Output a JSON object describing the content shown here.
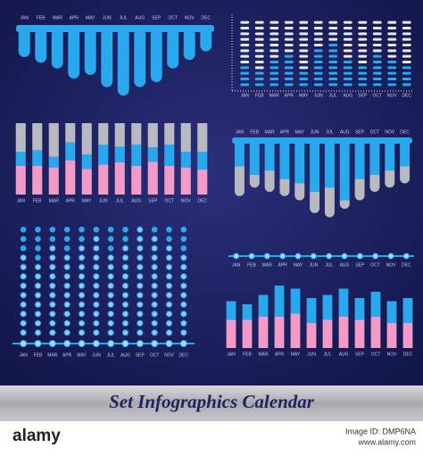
{
  "chart_data": [
    {
      "type": "hanging-bar",
      "categories": [
        "JAN",
        "FEB",
        "MAR",
        "APR",
        "MAY",
        "JUN",
        "JUL",
        "AUG",
        "SEP",
        "OCT",
        "NOV",
        "DEC"
      ],
      "values": [
        40,
        48,
        56,
        70,
        65,
        82,
        94,
        82,
        75,
        56,
        44,
        32
      ],
      "color": "#2aa8ee",
      "ylim": [
        0,
        100
      ]
    },
    {
      "type": "dot-matrix",
      "categories": [
        "JAN",
        "FEB",
        "MAR",
        "APR",
        "MAY",
        "JUN",
        "JUL",
        "AUG",
        "SEP",
        "OCT",
        "NOV",
        "DEC"
      ],
      "values": [
        4,
        3,
        5,
        6,
        3,
        7,
        8,
        5,
        4,
        6,
        5,
        4
      ],
      "color": "#2aa8ee",
      "ylim": [
        0,
        12
      ]
    },
    {
      "type": "stacked-bar",
      "categories": [
        "JAN",
        "FEB",
        "MAR",
        "APR",
        "MAY",
        "JUN",
        "JUL",
        "AUG",
        "SEP",
        "OCT",
        "NOV",
        "DEC"
      ],
      "series": [
        {
          "color": "#f29bc8",
          "values": [
            40,
            40,
            38,
            48,
            36,
            42,
            45,
            40,
            46,
            40,
            38,
            35
          ]
        },
        {
          "color": "#2aa8ee",
          "values": [
            20,
            22,
            15,
            25,
            20,
            28,
            22,
            30,
            20,
            30,
            22,
            25
          ]
        },
        {
          "color": "#b9b9c2",
          "values": [
            40,
            38,
            47,
            27,
            44,
            30,
            33,
            30,
            34,
            30,
            40,
            40
          ]
        }
      ],
      "ylim": [
        0,
        100
      ]
    },
    {
      "type": "hanging-stacked",
      "categories": [
        "JAN",
        "FEB",
        "MAR",
        "APR",
        "MAY",
        "JUN",
        "JUL",
        "AUG",
        "SEP",
        "OCT",
        "NOV",
        "DEC"
      ],
      "series": [
        {
          "color": "#2aa8ee",
          "values": [
            30,
            40,
            35,
            45,
            50,
            60,
            55,
            70,
            45,
            40,
            35,
            30
          ]
        },
        {
          "color": "#b9b9c2",
          "values": [
            35,
            15,
            25,
            20,
            20,
            25,
            35,
            10,
            25,
            20,
            20,
            20
          ]
        }
      ],
      "ylim": [
        0,
        100
      ]
    },
    {
      "type": "dot-grid",
      "categories": [
        "JAN",
        "FEB",
        "MAR",
        "APR",
        "MAY",
        "JUN",
        "JUL",
        "AUG",
        "SEP",
        "OCT",
        "NOV",
        "DEC"
      ],
      "values": [
        9,
        8,
        10,
        9,
        10,
        11,
        9,
        10,
        12,
        11,
        10,
        9
      ],
      "color": "#2aa8ee",
      "ylim": [
        0,
        12
      ]
    },
    {
      "type": "timeline",
      "categories": [
        "JAN",
        "FEB",
        "MAR",
        "APR",
        "MAY",
        "JUN",
        "JUL",
        "AUG",
        "SEP",
        "OCT",
        "NOV",
        "DEC"
      ],
      "color": "#2aa8ee"
    },
    {
      "type": "stacked-bar",
      "categories": [
        "JAN",
        "FEB",
        "MAR",
        "APR",
        "MAY",
        "JUN",
        "JUL",
        "AUG",
        "SEP",
        "OCT",
        "NOV",
        "DEC"
      ],
      "series": [
        {
          "color": "#f29bc8",
          "values": [
            45,
            45,
            50,
            50,
            55,
            40,
            45,
            50,
            45,
            50,
            40,
            40
          ]
        },
        {
          "color": "#2aa8ee",
          "values": [
            30,
            25,
            35,
            50,
            40,
            40,
            40,
            45,
            35,
            40,
            35,
            40
          ]
        }
      ],
      "ylim": [
        0,
        100
      ]
    }
  ],
  "banner_title": "Set Infographics Calendar",
  "watermark": {
    "logo": "alamy",
    "image_id": "Image ID: DMP6NA",
    "url": "www.alamy.com"
  }
}
